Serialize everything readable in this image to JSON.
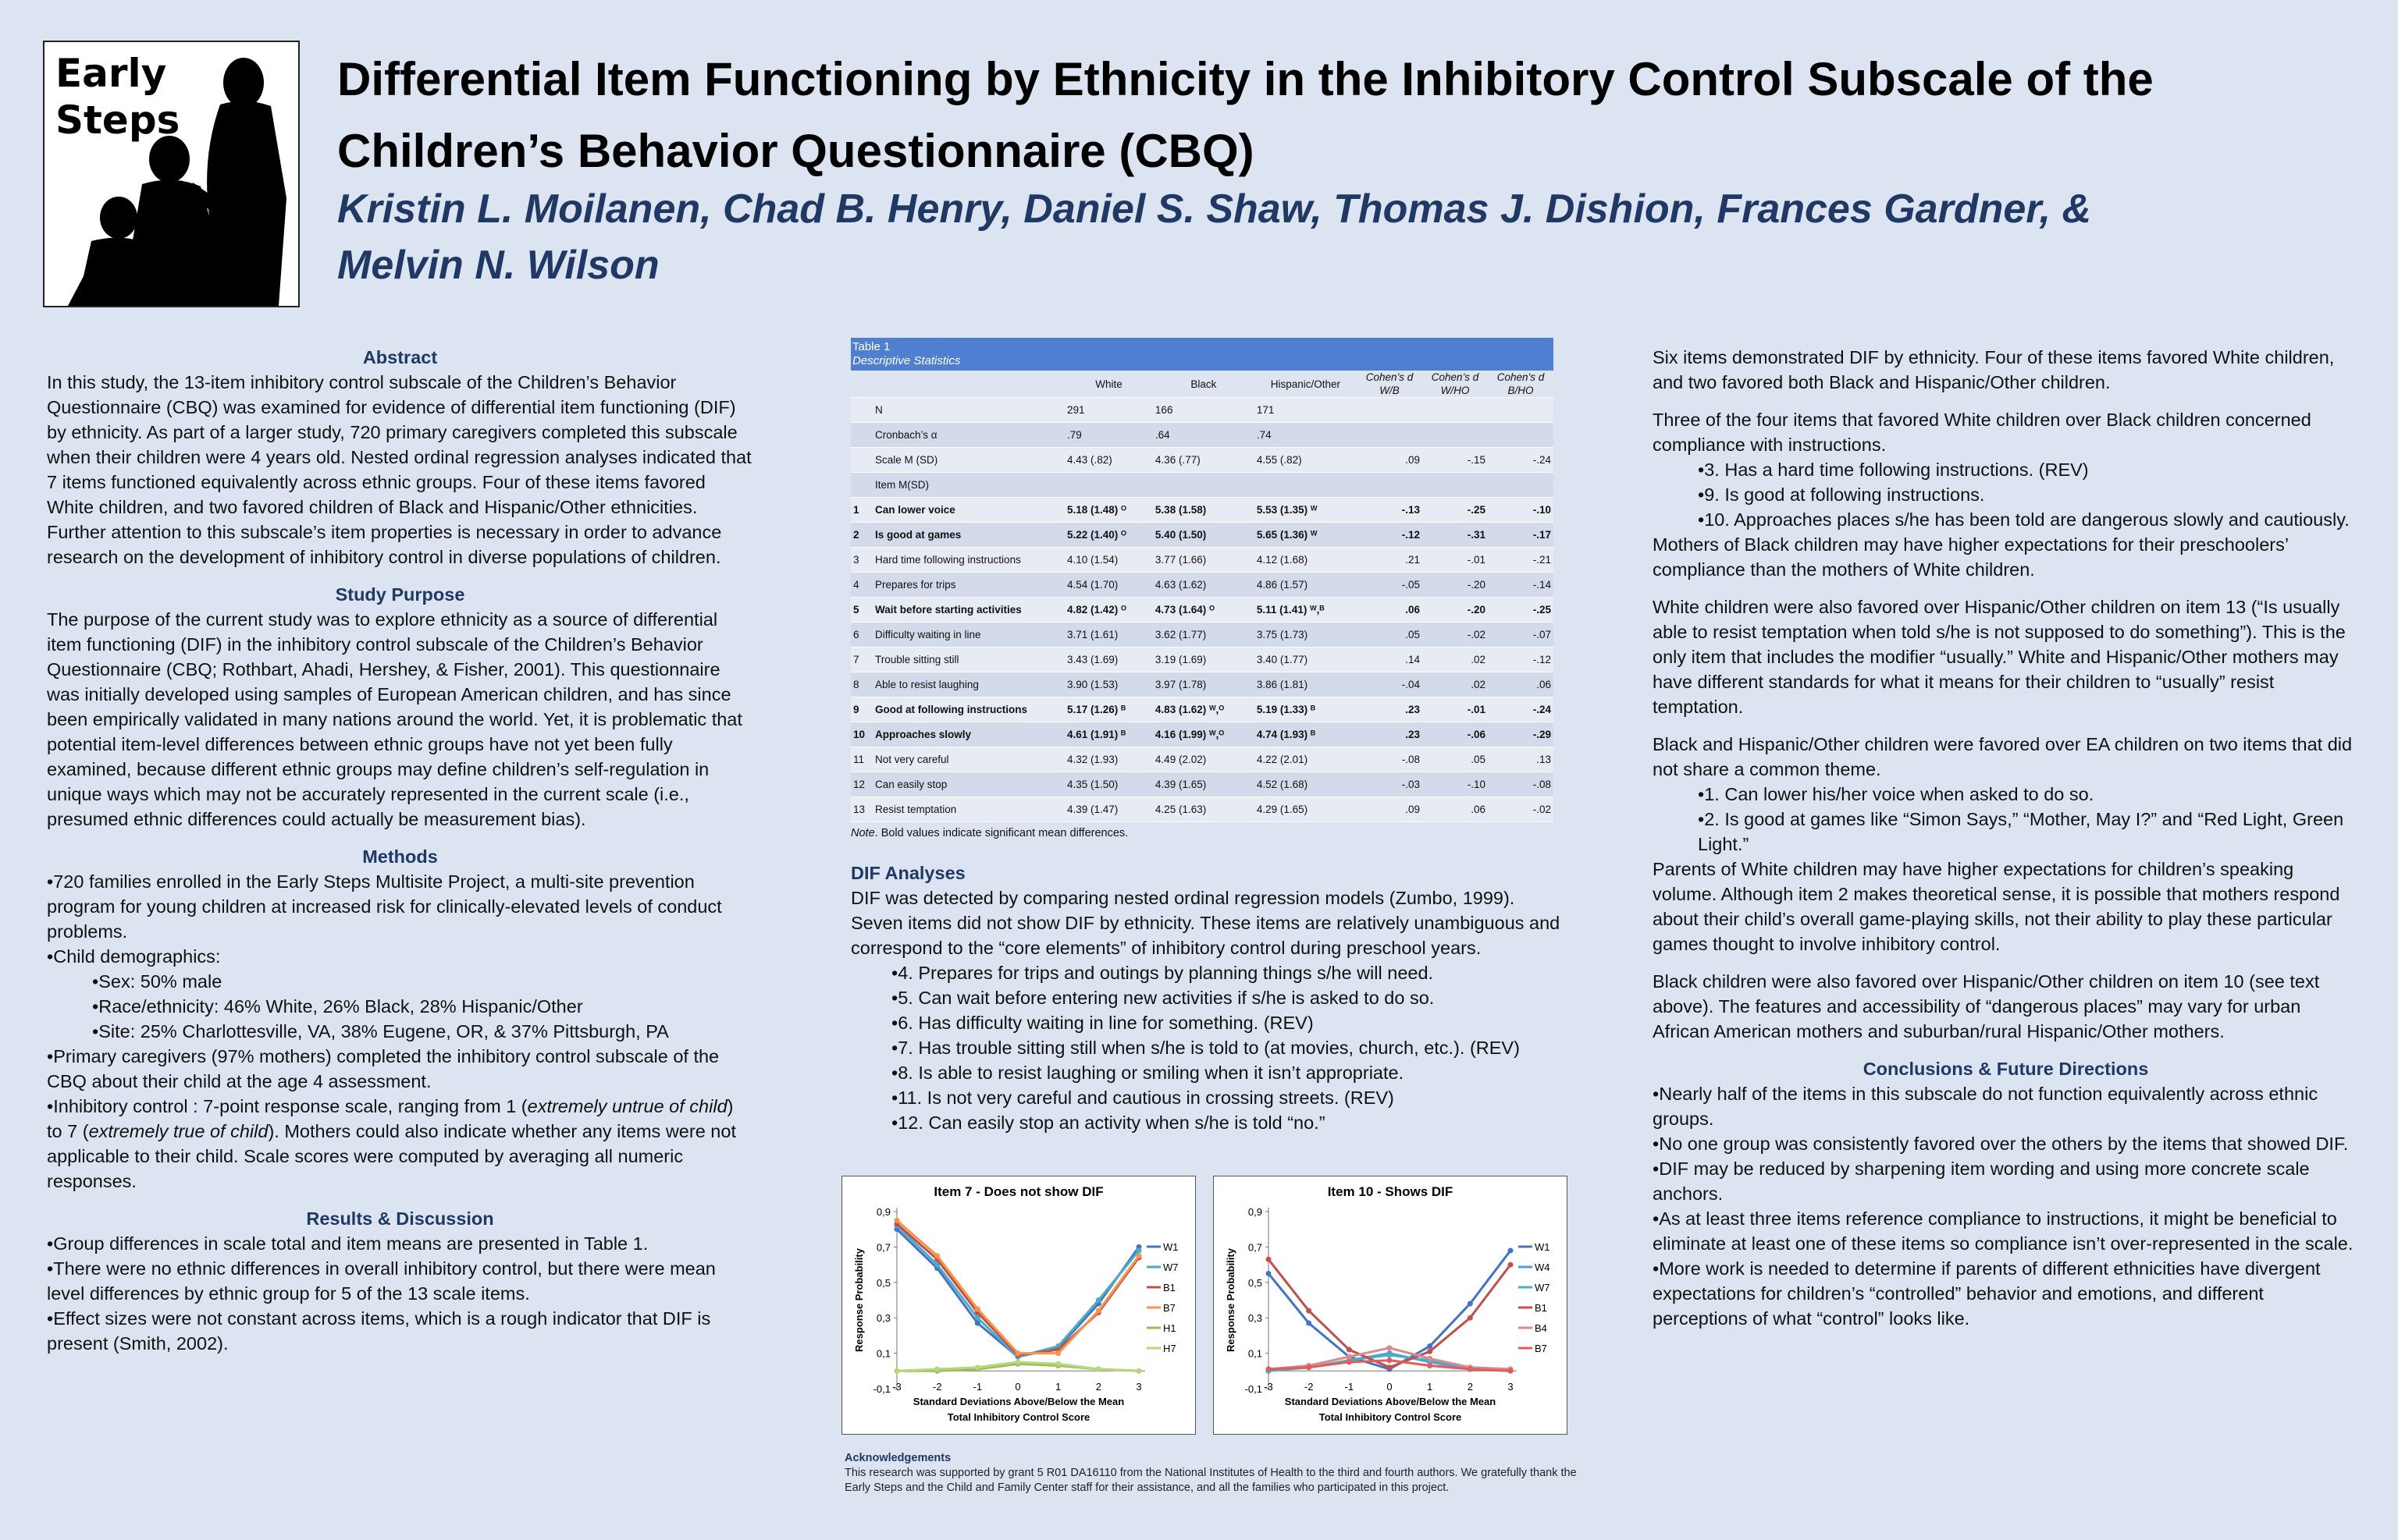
{
  "logo": {
    "line1": "Early",
    "line2": "Steps"
  },
  "title": "Differential Item Functioning by Ethnicity in the Inhibitory Control Subscale of the Children’s Behavior Questionnaire (CBQ)",
  "authors": "Kristin L. Moilanen, Chad B. Henry, Daniel S. Shaw, Thomas J. Dishion, Frances Gardner, & Melvin N. Wilson",
  "abstract": {
    "heading": "Abstract",
    "text": "In this study, the 13-item inhibitory control subscale of the Children’s Behavior Questionnaire (CBQ) was examined for evidence of differential item functioning (DIF) by ethnicity. As part of a larger study, 720 primary caregivers completed this subscale when their children were 4 years old. Nested ordinal regression analyses indicated that 7 items functioned equivalently across ethnic groups. Four of these items favored White children, and two favored children of Black and Hispanic/Other ethnicities. Further attention to this subscale’s item properties is necessary in order to advance research on the development of inhibitory control in diverse populations of children."
  },
  "purpose": {
    "heading": "Study Purpose",
    "text": "The purpose of the current study was to explore ethnicity as a source of differential item functioning (DIF) in the inhibitory control subscale of the Children’s Behavior Questionnaire (CBQ; Rothbart, Ahadi, Hershey, & Fisher, 2001). This questionnaire was initially developed using samples of European American children, and has since been empirically validated in many nations around the world.  Yet, it is problematic that potential item-level differences between ethnic groups have not yet been fully examined, because different ethnic groups may define children’s self-regulation in unique ways which may not be accurately represented in the current scale (i.e., presumed ethnic differences could actually be measurement bias)."
  },
  "methods": {
    "heading": "Methods",
    "b1": "•720 families enrolled in the Early Steps Multisite Project, a multi-site prevention program for young children at increased risk for clinically-elevated levels of conduct problems.",
    "b2": "•Child demographics:",
    "s1": "•Sex: 50% male",
    "s2": "•Race/ethnicity: 46% White, 26% Black, 28% Hispanic/Other",
    "s3": "•Site: 25% Charlottesville, VA, 38% Eugene, OR, & 37% Pittsburgh, PA",
    "b3": "•Primary caregivers (97% mothers) completed the inhibitory control subscale of the CBQ  about their child at the age 4 assessment.",
    "b4a": "•Inhibitory control :  7-point response scale, ranging from 1 (",
    "b4b": "extremely untrue of child",
    "b4c": ") to 7 (",
    "b4d": "extremely true of child",
    "b4e": "). Mothers could also indicate whether any items were not applicable to their child. Scale scores were computed by averaging all numeric responses."
  },
  "results": {
    "heading": "Results & Discussion",
    "b1": "•Group differences in  scale total and item means are presented in Table 1.",
    "b2": "•There were no ethnic differences in  overall inhibitory control, but there were mean level differences by ethnic group for 5 of the 13 scale items.",
    "b3": "•Effect sizes were not constant across items, which is a rough indicator that DIF is present (Smith, 2002)."
  },
  "table": {
    "title": "Table 1",
    "subtitle": "Descriptive Statistics",
    "headers": [
      "",
      "White",
      "Black",
      "Hispanic/Other",
      "Cohen’s d W/B",
      "Cohen’s d W/HO",
      "Cohen’s d B/HO"
    ],
    "rows": [
      {
        "num": "",
        "label": "N",
        "w": "291",
        "b": "166",
        "h": "171",
        "d1": "",
        "d2": "",
        "d3": "",
        "bold": false
      },
      {
        "num": "",
        "label": "Cronbach’s α",
        "w": ".79",
        "b": ".64",
        "h": ".74",
        "d1": "",
        "d2": "",
        "d3": "",
        "bold": false
      },
      {
        "num": "",
        "label": "Scale M (SD)",
        "w": "4.43 (.82)",
        "b": "4.36 (.77)",
        "h": "4.55 (.82)",
        "d1": ".09",
        "d2": "-.15",
        "d3": "-.24",
        "bold": false
      },
      {
        "num": "",
        "label": "Item M(SD)",
        "w": "",
        "b": "",
        "h": "",
        "d1": "",
        "d2": "",
        "d3": "",
        "bold": false
      },
      {
        "num": "1",
        "label": "Can lower voice",
        "w": "5.18 (1.48) ᴼ",
        "b": "5.38 (1.58)",
        "h": "5.53 (1.35) ᵂ",
        "d1": "-.13",
        "d2": "-.25",
        "d3": "-.10",
        "bold": true
      },
      {
        "num": "2",
        "label": "Is good at games",
        "w": "5.22 (1.40) ᴼ",
        "b": "5.40 (1.50)",
        "h": "5.65 (1.36) ᵂ",
        "d1": "-.12",
        "d2": "-.31",
        "d3": "-.17",
        "bold": true
      },
      {
        "num": "3",
        "label": "Hard time following instructions",
        "w": "4.10 (1.54)",
        "b": "3.77 (1.66)",
        "h": "4.12 (1.68)",
        "d1": ".21",
        "d2": "-.01",
        "d3": "-.21",
        "bold": false
      },
      {
        "num": "4",
        "label": "Prepares for trips",
        "w": "4.54 (1.70)",
        "b": "4.63 (1.62)",
        "h": "4.86 (1.57)",
        "d1": "-.05",
        "d2": "-.20",
        "d3": "-.14",
        "bold": false
      },
      {
        "num": "5",
        "label": "Wait before starting activities",
        "w": "4.82 (1.42) ᴼ",
        "b": "4.73 (1.64) ᴼ",
        "h": "5.11 (1.41) ᵂ,ᴮ",
        "d1": ".06",
        "d2": "-.20",
        "d3": "-.25",
        "bold": true
      },
      {
        "num": "6",
        "label": "Difficulty waiting in line",
        "w": "3.71 (1.61)",
        "b": "3.62 (1.77)",
        "h": "3.75 (1.73)",
        "d1": ".05",
        "d2": "-.02",
        "d3": "-.07",
        "bold": false
      },
      {
        "num": "7",
        "label": "Trouble sitting still",
        "w": "3.43 (1.69)",
        "b": "3.19 (1.69)",
        "h": "3.40 (1.77)",
        "d1": ".14",
        "d2": ".02",
        "d3": "-.12",
        "bold": false
      },
      {
        "num": "8",
        "label": "Able to resist laughing",
        "w": "3.90 (1.53)",
        "b": "3.97 (1.78)",
        "h": "3.86 (1.81)",
        "d1": "-.04",
        "d2": ".02",
        "d3": ".06",
        "bold": false
      },
      {
        "num": "9",
        "label": "Good at following instructions",
        "w": "5.17 (1.26) ᴮ",
        "b": "4.83 (1.62) ᵂ,ᴼ",
        "h": "5.19 (1.33) ᴮ",
        "d1": ".23",
        "d2": "-.01",
        "d3": "-.24",
        "bold": true
      },
      {
        "num": "10",
        "label": "Approaches slowly",
        "w": "4.61 (1.91) ᴮ",
        "b": "4.16 (1.99) ᵂ,ᴼ",
        "h": "4.74 (1.93) ᴮ",
        "d1": ".23",
        "d2": "-.06",
        "d3": "-.29",
        "bold": true
      },
      {
        "num": "11",
        "label": "Not very careful",
        "w": "4.32 (1.93)",
        "b": "4.49 (2.02)",
        "h": "4.22 (2.01)",
        "d1": "-.08",
        "d2": ".05",
        "d3": ".13",
        "bold": false
      },
      {
        "num": "12",
        "label": "Can easily stop",
        "w": "4.35 (1.50)",
        "b": "4.39 (1.65)",
        "h": "4.52 (1.68)",
        "d1": "-.03",
        "d2": "-.10",
        "d3": "-.08",
        "bold": false
      },
      {
        "num": "13",
        "label": "Resist temptation",
        "w": "4.39 (1.47)",
        "b": "4.25 (1.63)",
        "h": "4.29 (1.65)",
        "d1": ".09",
        "d2": ".06",
        "d3": "-.02",
        "bold": false
      }
    ],
    "note_label": "Note",
    "note_text": ". Bold values indicate significant mean differences."
  },
  "dif": {
    "heading": "DIF Analyses",
    "text": "DIF was detected by comparing nested ordinal regression models (Zumbo, 1999). Seven items did not show DIF by ethnicity. These items are relatively unambiguous and correspond to the “core elements” of inhibitory control during preschool years.",
    "items": [
      "•4. Prepares for trips and outings by planning things s/he will need.",
      "•5. Can wait before entering new activities if s/he is asked to do so.",
      "•6. Has difficulty waiting in line for something. (REV)",
      "•7. Has trouble sitting still when s/he is told to (at movies, church, etc.). (REV)",
      "•8. Is able to resist laughing or smiling when it isn’t appropriate.",
      "•11. Is not very careful and cautious in crossing streets. (REV)",
      "•12. Can easily stop an activity when s/he is told “no.”"
    ]
  },
  "chart_data": [
    {
      "type": "line",
      "title": "Item 7 - Does not show DIF",
      "xlabel": "Standard Deviations Above/Below the Mean Total Inhibitory Control Score",
      "ylabel": "Response Probability",
      "x": [
        -3,
        -2,
        -1,
        0,
        1,
        2,
        3
      ],
      "xticks": [
        "-3",
        "-2",
        "-1",
        "0",
        "1",
        "2",
        "3"
      ],
      "yticks": [
        "-0,1",
        "0,1",
        "0,3",
        "0,5",
        "0,7",
        "0,9"
      ],
      "ylim": [
        -0.1,
        0.9
      ],
      "series": [
        {
          "name": "W1",
          "color": "#4472c4",
          "values": [
            0.8,
            0.58,
            0.27,
            0.08,
            0.13,
            0.38,
            0.7
          ]
        },
        {
          "name": "W7",
          "color": "#4aacc6",
          "values": [
            0.82,
            0.6,
            0.3,
            0.08,
            0.14,
            0.4,
            0.68
          ]
        },
        {
          "name": "B1",
          "color": "#c0504d",
          "values": [
            0.83,
            0.63,
            0.33,
            0.09,
            0.12,
            0.33,
            0.64
          ]
        },
        {
          "name": "B7",
          "color": "#f79646",
          "values": [
            0.85,
            0.65,
            0.35,
            0.1,
            0.1,
            0.34,
            0.65
          ]
        },
        {
          "name": "H1",
          "color": "#9bbb59",
          "values": [
            0.0,
            0.0,
            0.01,
            0.04,
            0.03,
            0.01,
            0.0
          ]
        },
        {
          "name": "H7",
          "color": "#b6d77a",
          "values": [
            0.0,
            0.01,
            0.02,
            0.05,
            0.04,
            0.01,
            0.0
          ]
        }
      ],
      "legend": "right"
    },
    {
      "type": "line",
      "title": "Item 10 - Shows DIF",
      "xlabel": "Standard Deviations Above/Below the Mean Total Inhibitory Control Score",
      "ylabel": "Response Probability",
      "x": [
        -3,
        -2,
        -1,
        0,
        1,
        2,
        3
      ],
      "xticks": [
        "-3",
        "-2",
        "-1",
        "0",
        "1",
        "2",
        "3"
      ],
      "yticks": [
        "-0,1",
        "0,1",
        "0,3",
        "0,5",
        "0,7",
        "0,9"
      ],
      "ylim": [
        -0.1,
        0.9
      ],
      "series": [
        {
          "name": "W1",
          "color": "#4472c4",
          "values": [
            0.55,
            0.27,
            0.08,
            0.01,
            0.14,
            0.38,
            0.68
          ]
        },
        {
          "name": "W4",
          "color": "#5a9bd5",
          "values": [
            0.0,
            0.02,
            0.06,
            0.1,
            0.05,
            0.01,
            0.0
          ]
        },
        {
          "name": "W7",
          "color": "#4aacc6",
          "values": [
            0.0,
            0.02,
            0.06,
            0.09,
            0.06,
            0.02,
            0.01
          ]
        },
        {
          "name": "B1",
          "color": "#c0504d",
          "values": [
            0.63,
            0.34,
            0.12,
            0.02,
            0.11,
            0.3,
            0.6
          ]
        },
        {
          "name": "B4",
          "color": "#d98a8a",
          "values": [
            0.01,
            0.03,
            0.08,
            0.13,
            0.07,
            0.02,
            0.01
          ]
        },
        {
          "name": "B7",
          "color": "#e35c5c",
          "values": [
            0.01,
            0.02,
            0.05,
            0.06,
            0.03,
            0.01,
            0.0
          ]
        }
      ],
      "legend": "right"
    }
  ],
  "ack": {
    "heading": "Acknowledgements",
    "text": "This research was supported by grant 5 R01 DA16110 from the National Institutes of Health to the third and fourth authors. We gratefully thank the Early Steps and the Child and Family Center staff for their assistance, and all the families who participated in this project."
  },
  "right": {
    "p1": "Six items demonstrated DIF by ethnicity. Four of these items favored White children, and two favored both Black and Hispanic/Other children.",
    "p2": "Three of the four items that favored White children over Black children concerned compliance with instructions.",
    "p2i1": "•3. Has a hard time following instructions. (REV)",
    "p2i2": "•9. Is good at following instructions.",
    "p2i3": "•10. Approaches places s/he has been told are dangerous slowly and cautiously.",
    "p2b": "Mothers of Black children may have higher expectations for their preschoolers’ compliance than the mothers of White children.",
    "p3": "White children were also favored over Hispanic/Other children on item 13 (“Is usually able to resist temptation when told s/he is not supposed to do something”). This is the only item that includes the modifier “usually.” White and Hispanic/Other mothers may have different standards for what it means for their children to “usually” resist temptation.",
    "p4": "Black and Hispanic/Other children were favored over EA children on two items that did not share a common theme.",
    "p4i1": "•1. Can lower his/her voice when asked to do so.",
    "p4i2": "•2. Is good at games like “Simon Says,” “Mother, May I?” and “Red Light, Green Light.”",
    "p4b": "Parents of White children may have higher expectations for children’s speaking volume. Although item 2 makes theoretical sense, it is possible that mothers respond about their child’s overall game-playing skills, not their ability to play these particular games thought to involve inhibitory control.",
    "p5": "Black children were also favored over Hispanic/Other children on item 10 (see text above). The features and accessibility of “dangerous places” may vary for urban African American mothers and suburban/rural Hispanic/Other mothers.",
    "conc_heading": "Conclusions & Future Directions",
    "c1": "•Nearly half of the items in this subscale do not function equivalently across ethnic groups.",
    "c2": "•No one group was consistently favored over the others by the items that showed DIF.",
    "c3": "•DIF may be reduced by sharpening item wording and using more concrete scale anchors.",
    "c4": "•As at least three items reference compliance to instructions, it might be beneficial to eliminate at least one of these items so compliance isn’t over-represented in the scale.",
    "c5": "•More work is needed to determine if parents of different ethnicities have divergent expectations for children’s “controlled” behavior and emotions, and different perceptions of what “control” looks like."
  }
}
